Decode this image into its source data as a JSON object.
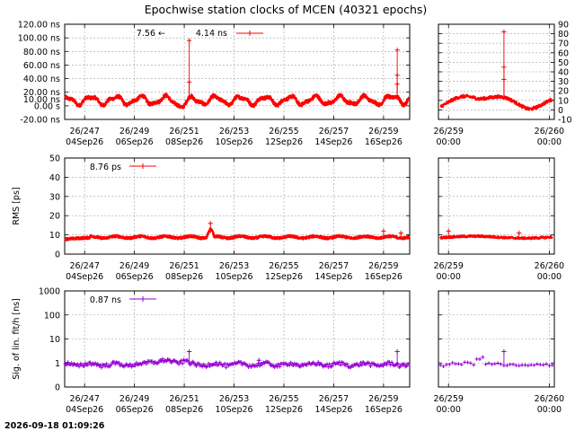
{
  "title": "Epochwise station clocks of MCEN (40321 epochs)",
  "timestamp": "2026-09-18 01:09:26",
  "colors": {
    "clock": "#ff0000",
    "rms": "#ff0000",
    "sig": "#9400d3",
    "grid": "#a0a0a0"
  },
  "main_x": {
    "ticks": [
      247,
      249,
      251,
      253,
      255,
      257,
      259
    ],
    "labels_top": [
      "26/247",
      "26/249",
      "26/251",
      "26/253",
      "26/255",
      "26/257",
      "26/259"
    ],
    "labels_bottom": [
      "04Sep26",
      "06Sep26",
      "08Sep26",
      "10Sep26",
      "12Sep26",
      "14Sep26",
      "16Sep26"
    ],
    "range": [
      246.2,
      260.05
    ]
  },
  "zoom_x": {
    "ticks": [
      259,
      260
    ],
    "labels_top": [
      "26/259",
      "26/260"
    ],
    "labels_bottom": [
      "00:00",
      "00:00"
    ],
    "range": [
      258.9,
      260.05
    ]
  },
  "chart_data": [
    {
      "type": "scatter",
      "panel": "clock-main",
      "ylabel": "",
      "ylim": [
        -20,
        120
      ],
      "yticks": [
        -20,
        0,
        10,
        20,
        40,
        60,
        80,
        100,
        120
      ],
      "ytick_labels": [
        "-20.00 ns",
        "0.00 s",
        "10.00 ns",
        "20.00 ns",
        "40.00 ns",
        "60.00 ns",
        "80.00 ns",
        "100.00 ns",
        "120.00 ns"
      ],
      "legend": {
        "value": "7.56",
        "arrow": "←",
        "series": "4.14 ns",
        "position": "top-center"
      },
      "baseline": 8,
      "spikes": [
        {
          "x": 251.2,
          "y": 96
        },
        {
          "x": 251.2,
          "y": 35
        },
        {
          "x": 259.55,
          "y": 82
        },
        {
          "x": 259.55,
          "y": 45
        },
        {
          "x": 259.55,
          "y": 32
        }
      ],
      "grid": true
    },
    {
      "type": "scatter",
      "panel": "clock-zoom",
      "ylim": [
        -10,
        90
      ],
      "yticks": [
        -10,
        0,
        10,
        20,
        30,
        40,
        50,
        60,
        70,
        80,
        90
      ],
      "ytick_labels": [
        "-10",
        "0",
        "10",
        "20",
        "30",
        "40",
        "50",
        "60",
        "70",
        "80",
        "90"
      ],
      "spikes": [
        {
          "x": 259.55,
          "y": 82
        },
        {
          "x": 259.55,
          "y": 45
        },
        {
          "x": 259.55,
          "y": 32
        }
      ],
      "grid": true
    },
    {
      "type": "scatter",
      "panel": "rms-main",
      "ylabel": "RMS [ps]",
      "ylim": [
        0,
        50
      ],
      "yticks": [
        0,
        10,
        20,
        30,
        40,
        50
      ],
      "ytick_labels": [
        "0",
        "10",
        "20",
        "30",
        "40",
        "50"
      ],
      "legend": {
        "series": "8.76 ps",
        "position": "top-left"
      },
      "baseline": 8.8,
      "spikes": [
        {
          "x": 252.05,
          "y": 16
        },
        {
          "x": 252.05,
          "y": 12
        },
        {
          "x": 259.0,
          "y": 12
        },
        {
          "x": 259.7,
          "y": 11
        }
      ],
      "grid": true
    },
    {
      "type": "scatter",
      "panel": "rms-zoom",
      "ylim": [
        0,
        50
      ],
      "spikes": [
        {
          "x": 259.0,
          "y": 12
        },
        {
          "x": 259.7,
          "y": 11
        }
      ],
      "grid": true
    },
    {
      "type": "scatter",
      "panel": "sig-main",
      "ylabel": "Sig. of lin. fit/h [ns]",
      "log_scale": true,
      "ylim": [
        0.1,
        1000
      ],
      "yticks": [
        0.1,
        1,
        10,
        100,
        1000
      ],
      "ytick_labels": [
        "0",
        "1",
        "10",
        "100",
        "1000"
      ],
      "legend": {
        "series": "0.87 ns",
        "position": "top-left"
      },
      "baseline": 0.87,
      "spikes": [
        {
          "x": 251.2,
          "y": 3
        },
        {
          "x": 254.0,
          "y": 1.3
        },
        {
          "x": 259.55,
          "y": 3
        }
      ],
      "grid": true
    },
    {
      "type": "scatter",
      "panel": "sig-zoom",
      "log_scale": true,
      "ylim": [
        0.1,
        1000
      ],
      "spikes": [
        {
          "x": 259.55,
          "y": 3
        }
      ],
      "grid": true
    }
  ]
}
